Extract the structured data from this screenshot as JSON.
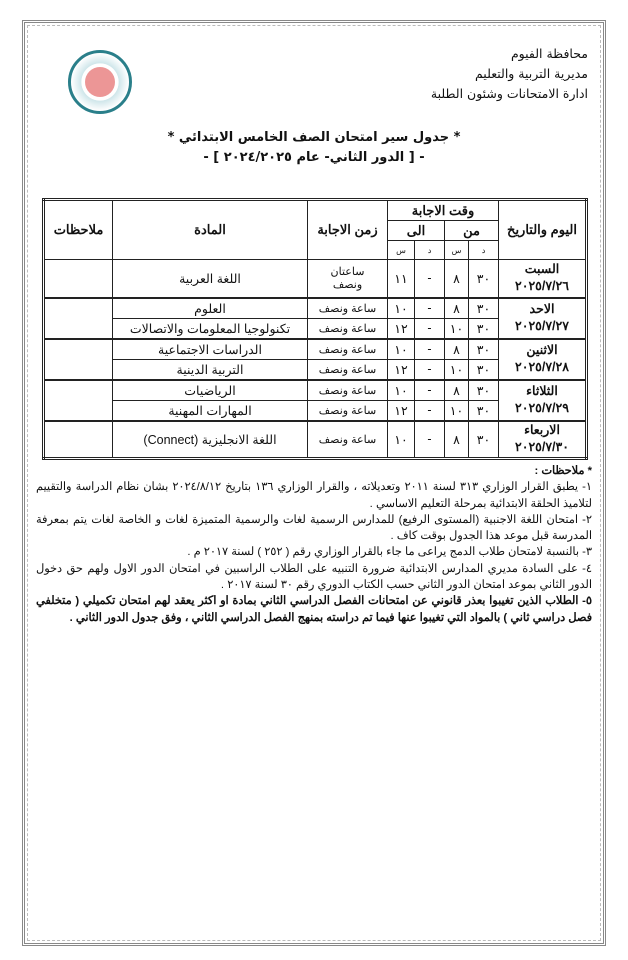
{
  "header": {
    "lines": [
      "محافظة الفيوم",
      "مديرية التربية والتعليم",
      "ادارة الامتحانات وشئون الطلبة"
    ]
  },
  "title": {
    "main": "* جدول سير امتحان الصف الخامس الابتدائي *",
    "sub": "- [ الدور الثاني- عام ٢٠٢٤/٢٠٢٥ ] -"
  },
  "table": {
    "headers": {
      "day": "اليوم والتاريخ",
      "answer_time": "وقت الاجابة",
      "from": "من",
      "to": "الى",
      "minute": "د",
      "hour": "س",
      "duration": "زمن الاجابة",
      "subject": "المادة",
      "notes": "ملاحظات"
    },
    "days": [
      {
        "day": "السبت",
        "date": "٢٠٢٥/٧/٢٦",
        "rows": [
          {
            "from_m": "٣٠",
            "from_h": "٨",
            "to_m": "-",
            "to_h": "١١",
            "duration": "ساعتان ونصف",
            "subject": "اللغة العربية"
          }
        ]
      },
      {
        "day": "الاحد",
        "date": "٢٠٢٥/٧/٢٧",
        "rows": [
          {
            "from_m": "٣٠",
            "from_h": "٨",
            "to_m": "-",
            "to_h": "١٠",
            "duration": "ساعة ونصف",
            "subject": "العلوم"
          },
          {
            "from_m": "٣٠",
            "from_h": "١٠",
            "to_m": "-",
            "to_h": "١٢",
            "duration": "ساعة ونصف",
            "subject": "تكنولوجيا المعلومات والاتصالات"
          }
        ]
      },
      {
        "day": "الاثنين",
        "date": "٢٠٢٥/٧/٢٨",
        "rows": [
          {
            "from_m": "٣٠",
            "from_h": "٨",
            "to_m": "-",
            "to_h": "١٠",
            "duration": "ساعة ونصف",
            "subject": "الدراسات الاجتماعية"
          },
          {
            "from_m": "٣٠",
            "from_h": "١٠",
            "to_m": "-",
            "to_h": "١٢",
            "duration": "ساعة ونصف",
            "subject": "التربية الدينية"
          }
        ]
      },
      {
        "day": "الثلاثاء",
        "date": "٢٠٢٥/٧/٢٩",
        "rows": [
          {
            "from_m": "٣٠",
            "from_h": "٨",
            "to_m": "-",
            "to_h": "١٠",
            "duration": "ساعة ونصف",
            "subject": "الرياضيات"
          },
          {
            "from_m": "٣٠",
            "from_h": "١٠",
            "to_m": "-",
            "to_h": "١٢",
            "duration": "ساعة ونصف",
            "subject": "المهارات المهنية"
          }
        ]
      },
      {
        "day": "الاربعاء",
        "date": "٢٠٢٥/٧/٣٠",
        "rows": [
          {
            "from_m": "٣٠",
            "from_h": "٨",
            "to_m": "-",
            "to_h": "١٠",
            "duration": "ساعة ونصف",
            "subject": "اللغة الانجليزية (Connect)"
          }
        ]
      }
    ]
  },
  "notes": {
    "heading": "* ملاحظات :",
    "items": [
      "١- يطبق القرار الوزاري ٣١٣ لسنة ٢٠١١ وتعديلاته ، والقرار الوزاري ١٣٦ بتاريخ ٢٠٢٤/٨/١٢ بشان نظام الدراسة والتقييم لتلاميذ الحلقة الابتدائية بمرحلة التعليم الاساسي .",
      "٢- امتحان اللغة الاجنبية (المستوى الرفيع) للمدارس الرسمية لغات والرسمية المتميزة لغات و الخاصة لغات يتم بمعرفة المدرسة قبل موعد هذا الجدول بوقت كاف .",
      "٣- بالنسبة لامتحان طلاب الدمج يراعى ما جاء بالقرار الوزاري رقم ( ٢٥٢ ) لسنة ٢٠١٧ م .",
      "٤- على السادة مديري المدارس الابتدائية ضرورة التنبيه على الطلاب الراسبين في امتحان الدور الاول ولهم حق دخول الدور الثاني بموعد امتحان الدور الثاني حسب الكتاب الدوري رقم ٣٠ لسنة ٢٠١٧ .",
      "٥- الطلاب الذين تغيبوا بعذر قانوني عن امتحانات الفصل الدراسي الثاني بمادة او اكثر يعقد لهم امتحان تكميلي ( متخلفي فصل دراسي ثاني ) بالمواد التي تغيبوا عنها فيما تم دراسته بمنهج الفصل الدراسي الثاني ، وفق جدول الدور الثاني ."
    ]
  }
}
